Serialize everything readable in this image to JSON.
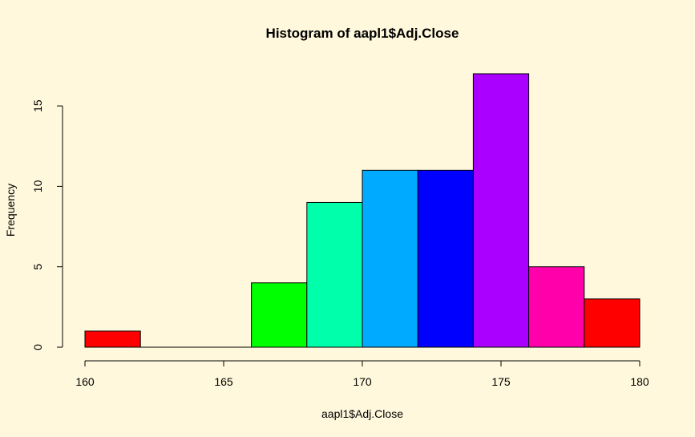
{
  "chart_data": {
    "type": "bar",
    "title": "Histogram of aapl1$Adj.Close",
    "xlabel": "aapl1$Adj.Close",
    "ylabel": "Frequency",
    "bins": [
      {
        "start": 160,
        "end": 162,
        "count": 1,
        "color": "#FF0000"
      },
      {
        "start": 162,
        "end": 164,
        "count": 0,
        "color": "#FF8000"
      },
      {
        "start": 164,
        "end": 166,
        "count": 0,
        "color": "#FFFF00"
      },
      {
        "start": 166,
        "end": 168,
        "count": 4,
        "color": "#00FF00"
      },
      {
        "start": 168,
        "end": 170,
        "count": 9,
        "color": "#00FFAA"
      },
      {
        "start": 170,
        "end": 172,
        "count": 11,
        "color": "#00AAFF"
      },
      {
        "start": 172,
        "end": 174,
        "count": 11,
        "color": "#0000FF"
      },
      {
        "start": 174,
        "end": 176,
        "count": 17,
        "color": "#AA00FF"
      },
      {
        "start": 176,
        "end": 178,
        "count": 5,
        "color": "#FF00AA"
      },
      {
        "start": 178,
        "end": 180,
        "count": 3,
        "color": "#FF0000"
      }
    ],
    "xlim": [
      160,
      180
    ],
    "ylim": [
      0,
      17
    ],
    "x_ticks": [
      160,
      165,
      170,
      175,
      180
    ],
    "y_ticks": [
      0,
      5,
      10,
      15
    ],
    "grid": false,
    "background": "#FFF8DC"
  }
}
